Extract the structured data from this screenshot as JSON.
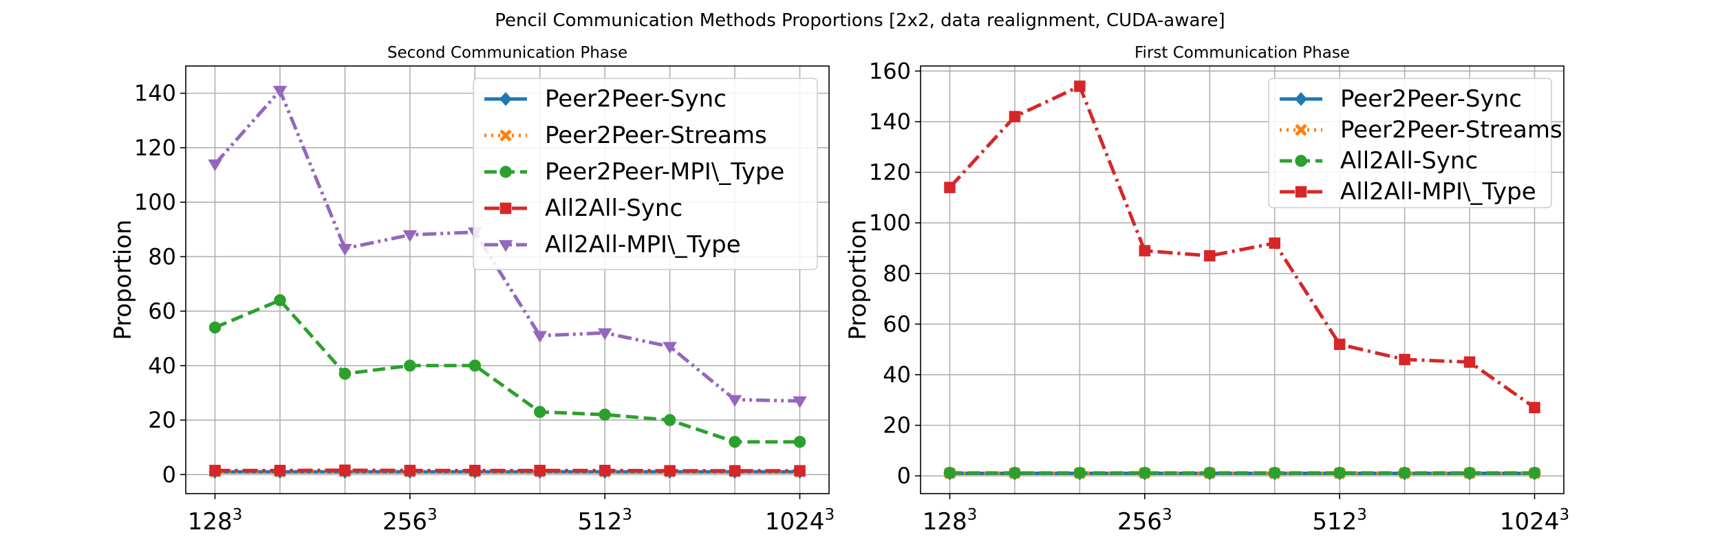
{
  "figure": {
    "title": "Pencil Communication Methods Proportions [2x2, data realignment, CUDA-aware]"
  },
  "chart_data": [
    {
      "type": "line",
      "title": "Second Communication Phase",
      "xlabel": "",
      "ylabel": "Proportion",
      "x": [
        1,
        2,
        3,
        4,
        5,
        6,
        7,
        8,
        9,
        10
      ],
      "xticks": [
        {
          "x": 1,
          "base": "128",
          "exp": "3"
        },
        {
          "x": 4,
          "base": "256",
          "exp": "3"
        },
        {
          "x": 7,
          "base": "512",
          "exp": "3"
        },
        {
          "x": 10,
          "base": "1024",
          "exp": "3"
        }
      ],
      "xlim": [
        0.55,
        10.45
      ],
      "ylim": [
        -7,
        150
      ],
      "yticks": [
        0,
        20,
        40,
        60,
        80,
        100,
        120,
        140
      ],
      "grid": true,
      "legend_position": "top-right",
      "series": [
        {
          "name": "Peer2Peer-Sync",
          "color": "#1f77b4",
          "dash": "solid",
          "marker": "diamond",
          "values": [
            1,
            1,
            1,
            1,
            1,
            1,
            1,
            1,
            1,
            1
          ]
        },
        {
          "name": "Peer2Peer-Streams",
          "color": "#ff7f0e",
          "dash": "dotted",
          "marker": "x",
          "values": [
            1.1,
            1.1,
            1.1,
            1.1,
            1.1,
            1.1,
            1.1,
            1.1,
            1.1,
            1.1
          ]
        },
        {
          "name": "Peer2Peer-MPI\\_Type",
          "color": "#2ca02c",
          "dash": "dashed",
          "marker": "circle",
          "values": [
            54,
            64,
            37,
            40,
            40,
            23,
            22,
            20,
            12,
            12
          ]
        },
        {
          "name": "All2All-Sync",
          "color": "#d62728",
          "dash": "dashdot",
          "marker": "square",
          "values": [
            1.5,
            1.5,
            1.6,
            1.5,
            1.5,
            1.5,
            1.5,
            1.4,
            1.4,
            1.4
          ]
        },
        {
          "name": "All2All-MPI\\_Type",
          "color": "#9467bd",
          "dash": "dashdotdot",
          "marker": "triangle-down",
          "values": [
            114,
            141,
            83,
            88,
            89,
            51,
            52,
            47,
            27.5,
            27
          ]
        }
      ]
    },
    {
      "type": "line",
      "title": "First Communication Phase",
      "xlabel": "",
      "ylabel": "Proportion",
      "x": [
        1,
        2,
        3,
        4,
        5,
        6,
        7,
        8,
        9,
        10
      ],
      "xticks": [
        {
          "x": 1,
          "base": "128",
          "exp": "3"
        },
        {
          "x": 4,
          "base": "256",
          "exp": "3"
        },
        {
          "x": 7,
          "base": "512",
          "exp": "3"
        },
        {
          "x": 10,
          "base": "1024",
          "exp": "3"
        }
      ],
      "xlim": [
        0.55,
        10.45
      ],
      "ylim": [
        -7,
        162
      ],
      "yticks": [
        0,
        20,
        40,
        60,
        80,
        100,
        120,
        140,
        160
      ],
      "grid": true,
      "legend_position": "top-right",
      "series": [
        {
          "name": "Peer2Peer-Sync",
          "color": "#1f77b4",
          "dash": "solid",
          "marker": "diamond",
          "values": [
            1,
            1,
            1,
            1,
            1,
            1,
            1,
            1,
            1,
            1
          ]
        },
        {
          "name": "Peer2Peer-Streams",
          "color": "#ff7f0e",
          "dash": "dotted",
          "marker": "x",
          "values": [
            1.1,
            1.1,
            1.1,
            1.1,
            1.1,
            1.1,
            1.1,
            1.1,
            1.1,
            1.1
          ]
        },
        {
          "name": "All2All-Sync",
          "color": "#2ca02c",
          "dash": "dashed",
          "marker": "circle",
          "values": [
            1.2,
            1.2,
            1.2,
            1.2,
            1.2,
            1.2,
            1.2,
            1.2,
            1.2,
            1.2
          ]
        },
        {
          "name": "All2All-MPI\\_Type",
          "color": "#d62728",
          "dash": "dashdot",
          "marker": "square",
          "values": [
            114,
            142,
            154,
            89,
            87,
            92,
            52,
            46,
            45,
            27
          ]
        }
      ]
    }
  ]
}
